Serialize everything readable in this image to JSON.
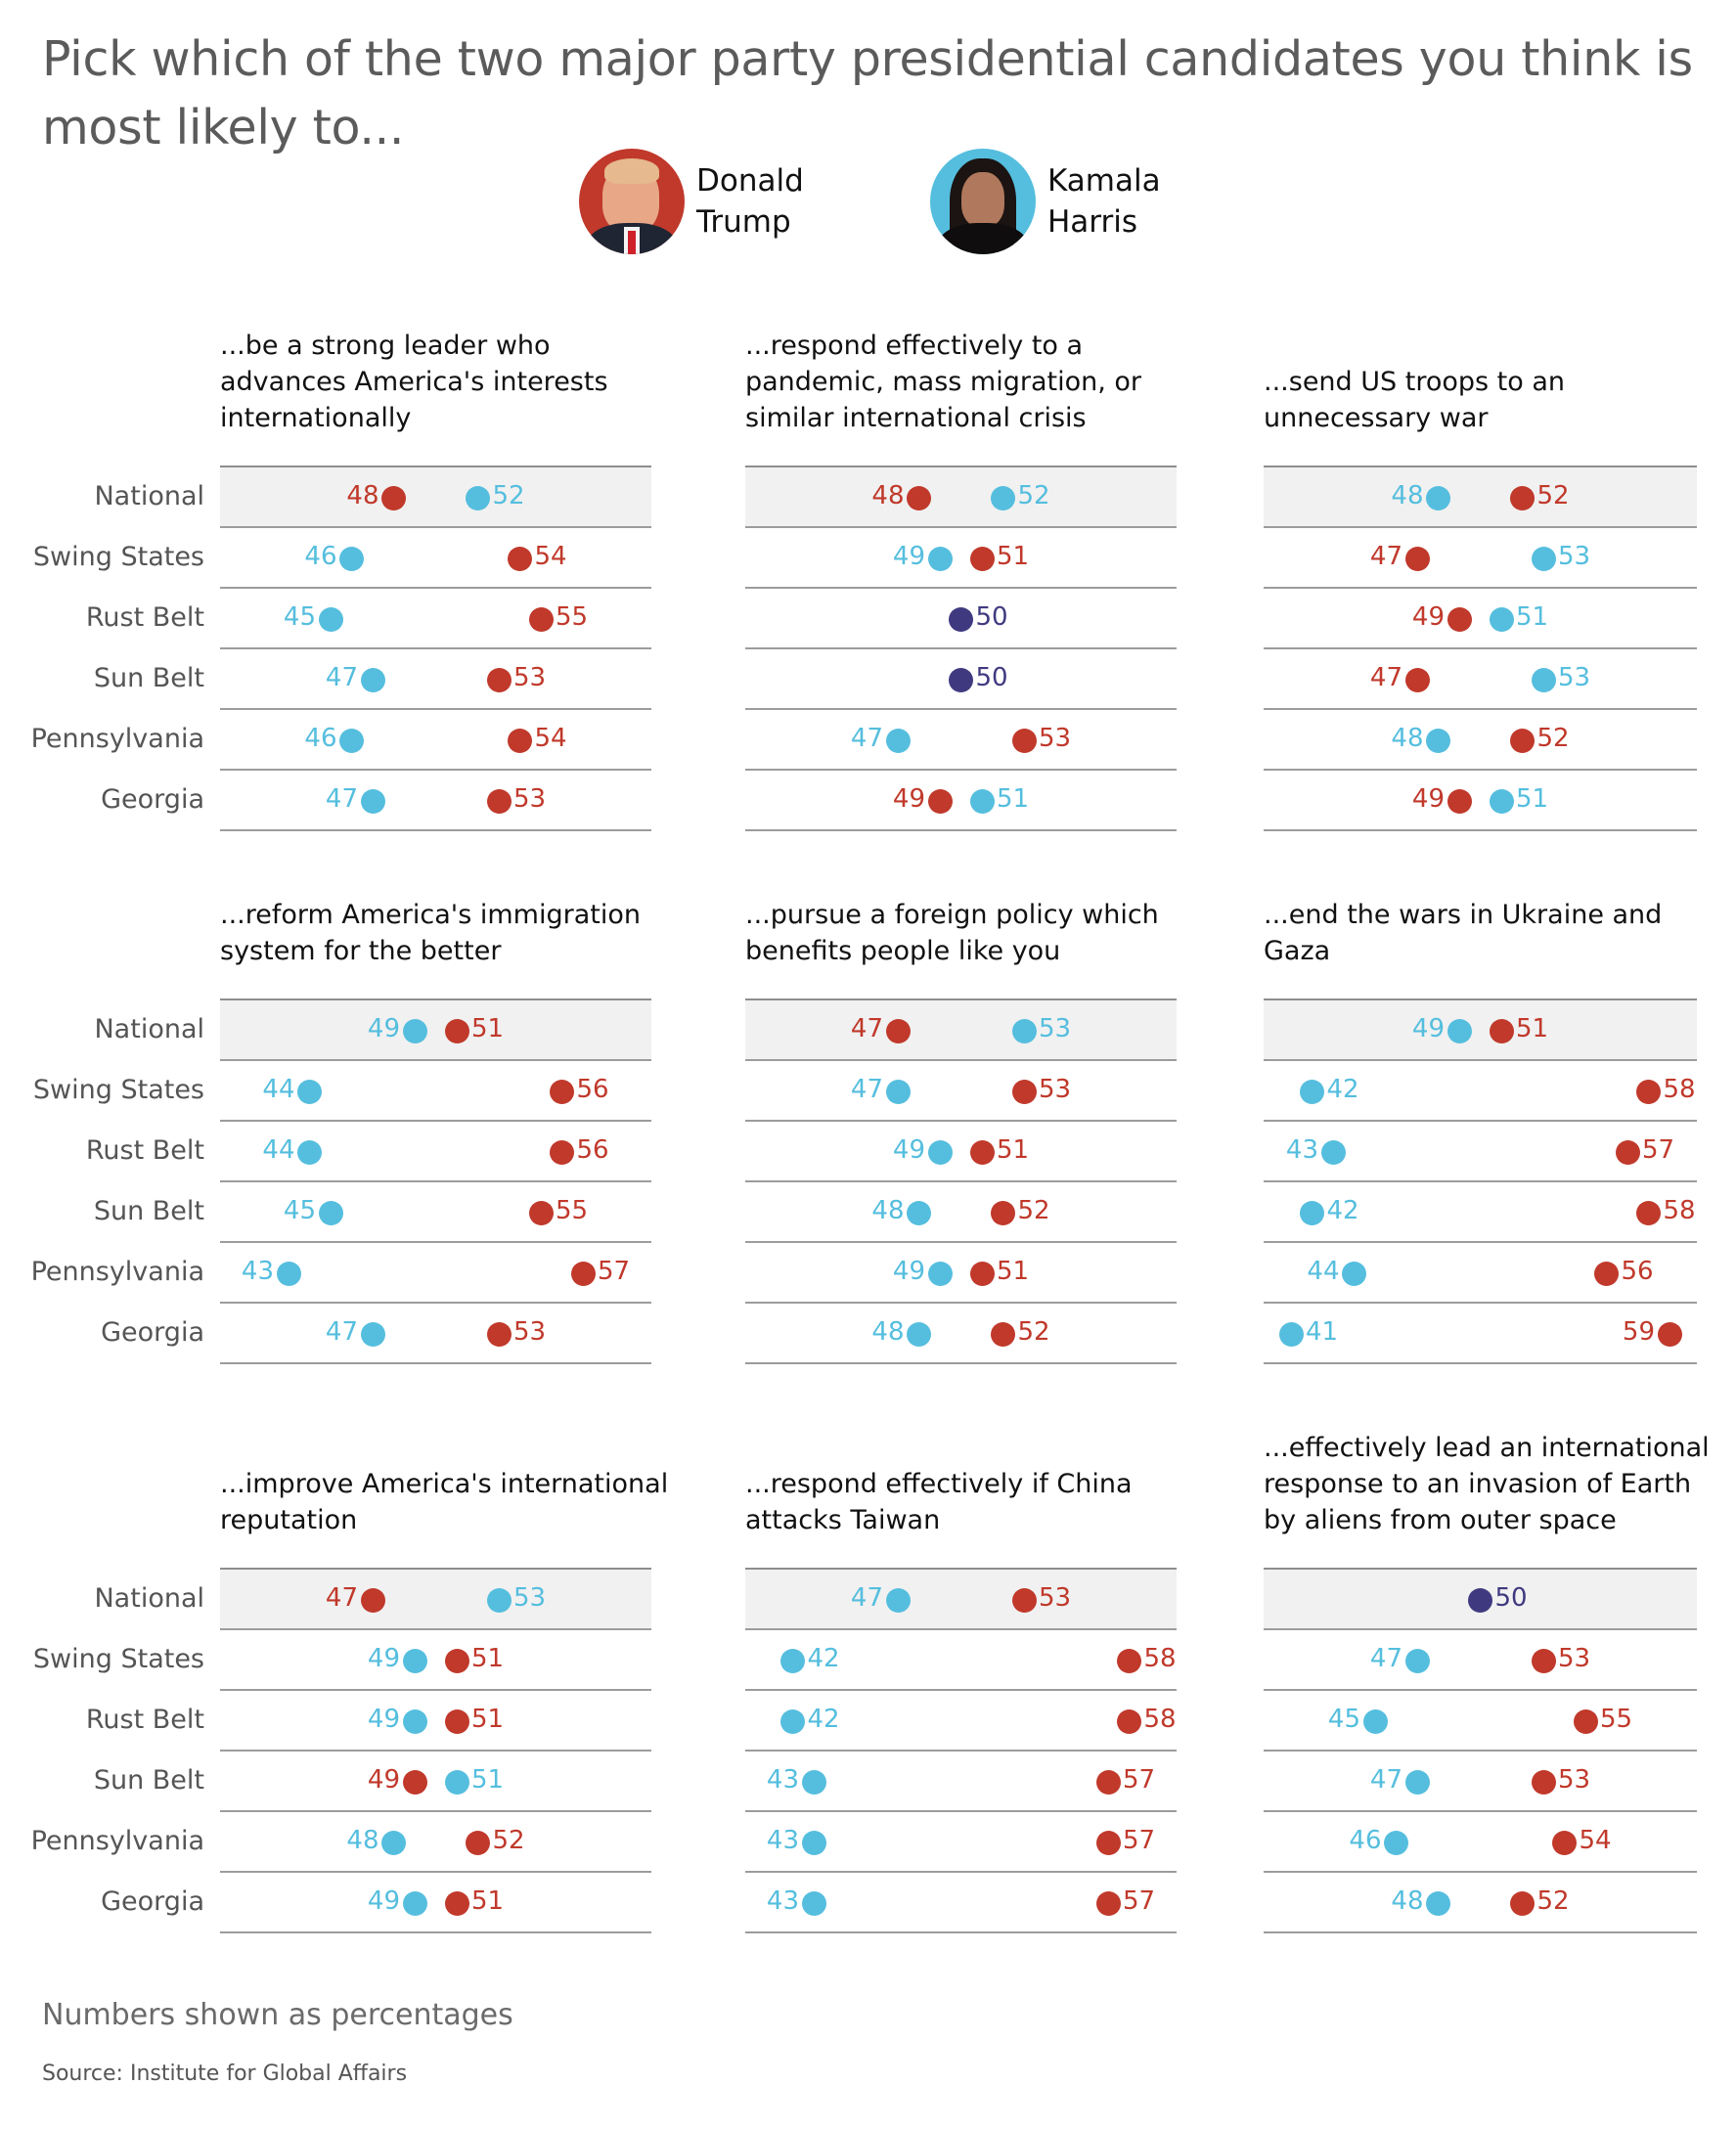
{
  "title": "Pick which of the two major party presidential candidates you think is most likely to...",
  "colors": {
    "trump": "#c0392b",
    "harris": "#55bede",
    "tie": "#3f3a80",
    "national_bg": "#f1f1f1"
  },
  "legend": [
    {
      "key": "trump",
      "first": "Donald",
      "last": "Trump",
      "icon": "trump-portrait-icon"
    },
    {
      "key": "harris",
      "first": "Kamala",
      "last": "Harris",
      "icon": "harris-portrait-icon"
    }
  ],
  "row_labels": [
    "National",
    "Swing States",
    "Rust Belt",
    "Sun Belt",
    "Pennsylvania",
    "Georgia"
  ],
  "chart_data": {
    "type": "dot-plot",
    "title": "Pick which of the two major party presidential candidates you think is most likely to...",
    "units": "percent",
    "xlim": [
      40,
      60
    ],
    "categories": [
      "National",
      "Swing States",
      "Rust Belt",
      "Sun Belt",
      "Pennsylvania",
      "Georgia"
    ],
    "legend": [
      "Donald Trump",
      "Kamala Harris"
    ],
    "panels": [
      {
        "title": "...be a strong leader who advances America's interests internationally",
        "trump": [
          48,
          54,
          55,
          53,
          54,
          53
        ],
        "harris": [
          52,
          46,
          45,
          47,
          46,
          47
        ]
      },
      {
        "title": "...respond effectively to a pandemic, mass migration, or similar international crisis",
        "trump": [
          48,
          51,
          50,
          50,
          53,
          49
        ],
        "harris": [
          52,
          49,
          50,
          50,
          47,
          51
        ]
      },
      {
        "title": "...send US troops to an unnecessary war",
        "trump": [
          52,
          47,
          49,
          47,
          52,
          49
        ],
        "harris": [
          48,
          53,
          51,
          53,
          48,
          51
        ]
      },
      {
        "title": "...reform America's immigration system for the better",
        "trump": [
          51,
          56,
          56,
          55,
          57,
          53
        ],
        "harris": [
          49,
          44,
          44,
          45,
          43,
          47
        ]
      },
      {
        "title": "...pursue a foreign policy which benefits people like you",
        "trump": [
          47,
          53,
          51,
          52,
          51,
          52
        ],
        "harris": [
          53,
          47,
          49,
          48,
          49,
          48
        ]
      },
      {
        "title": "...end the wars in Ukraine and Gaza",
        "trump": [
          51,
          58,
          57,
          58,
          56,
          59
        ],
        "harris": [
          49,
          42,
          43,
          42,
          44,
          41
        ]
      },
      {
        "title": "...improve America's international reputation",
        "trump": [
          47,
          51,
          51,
          49,
          52,
          51
        ],
        "harris": [
          53,
          49,
          49,
          51,
          48,
          49
        ]
      },
      {
        "title": "...respond effectively if China attacks Taiwan",
        "trump": [
          53,
          58,
          58,
          57,
          57,
          57
        ],
        "harris": [
          47,
          42,
          42,
          43,
          43,
          43
        ]
      },
      {
        "title": "...effectively lead an international response to an invasion of Earth by aliens from outer space",
        "trump": [
          50,
          53,
          55,
          53,
          54,
          52
        ],
        "harris": [
          50,
          47,
          45,
          47,
          46,
          48
        ]
      }
    ],
    "label_overrides": {
      "5": {
        "harris": [
          "L",
          "R",
          "L",
          "R",
          "L",
          "R"
        ],
        "trump": [
          "R",
          "R",
          "R",
          "R",
          "R",
          "L"
        ]
      },
      "7": {
        "harris": [
          "L",
          "R",
          "R",
          "L",
          "L",
          "L"
        ],
        "trump": [
          "R",
          "R",
          "R",
          "R",
          "R",
          "R"
        ]
      }
    }
  },
  "footer": {
    "note": "Numbers shown as percentages",
    "source": "Source: Institute for Global Affairs"
  }
}
